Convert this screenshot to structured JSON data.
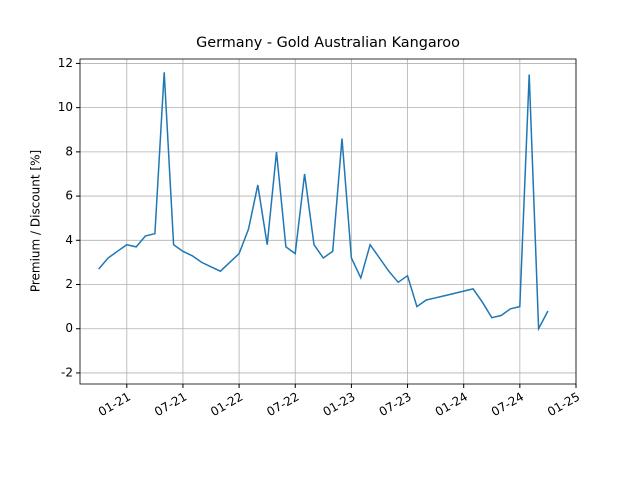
{
  "chart_data": {
    "type": "line",
    "title": "Germany - Gold Australian Kangaroo",
    "y_label": "Premium / Discount [%]",
    "x": [
      "2020-10",
      "2020-11",
      "2020-12",
      "2021-01",
      "2021-02",
      "2021-03",
      "2021-04",
      "2021-05",
      "2021-06",
      "2021-07",
      "2021-08",
      "2021-09",
      "2021-10",
      "2021-11",
      "2021-12",
      "2022-01",
      "2022-02",
      "2022-03",
      "2022-04",
      "2022-05",
      "2022-06",
      "2022-07",
      "2022-08",
      "2022-09",
      "2022-10",
      "2022-11",
      "2022-12",
      "2023-01",
      "2023-02",
      "2023-03",
      "2023-04",
      "2023-05",
      "2023-06",
      "2023-07",
      "2023-08",
      "2023-09",
      "2023-10",
      "2023-11",
      "2024-01",
      "2024-02",
      "2024-03",
      "2024-04",
      "2024-05",
      "2024-06",
      "2024-07",
      "2024-08",
      "2024-09",
      "2024-10"
    ],
    "series": [
      {
        "name": "Premium / Discount",
        "color": "#1f77b4",
        "values": [
          2.7,
          3.2,
          3.5,
          3.8,
          3.7,
          4.2,
          4.3,
          11.6,
          3.8,
          3.5,
          3.3,
          3.0,
          2.8,
          2.6,
          3.0,
          3.4,
          4.5,
          6.5,
          3.8,
          8.0,
          3.7,
          3.4,
          7.0,
          3.8,
          3.2,
          3.5,
          8.6,
          3.2,
          2.3,
          3.8,
          3.2,
          2.6,
          2.1,
          2.4,
          1.0,
          1.3,
          1.4,
          1.5,
          1.7,
          1.8,
          1.2,
          0.5,
          0.6,
          0.9,
          1.0,
          11.5,
          0.0,
          0.8
        ]
      }
    ],
    "xlim": [
      "2020-08",
      "2025-01"
    ],
    "xticks": [
      {
        "value": "2021-01",
        "label": "01-21"
      },
      {
        "value": "2021-07",
        "label": "07-21"
      },
      {
        "value": "2022-01",
        "label": "01-22"
      },
      {
        "value": "2022-07",
        "label": "07-22"
      },
      {
        "value": "2023-01",
        "label": "01-23"
      },
      {
        "value": "2023-07",
        "label": "07-23"
      },
      {
        "value": "2024-01",
        "label": "01-24"
      },
      {
        "value": "2024-07",
        "label": "07-24"
      },
      {
        "value": "2025-01",
        "label": "01-25"
      }
    ],
    "ylim": [
      -2.5,
      12.2
    ],
    "yticks": [
      -2,
      0,
      2,
      4,
      6,
      8,
      10,
      12
    ],
    "grid": true
  }
}
